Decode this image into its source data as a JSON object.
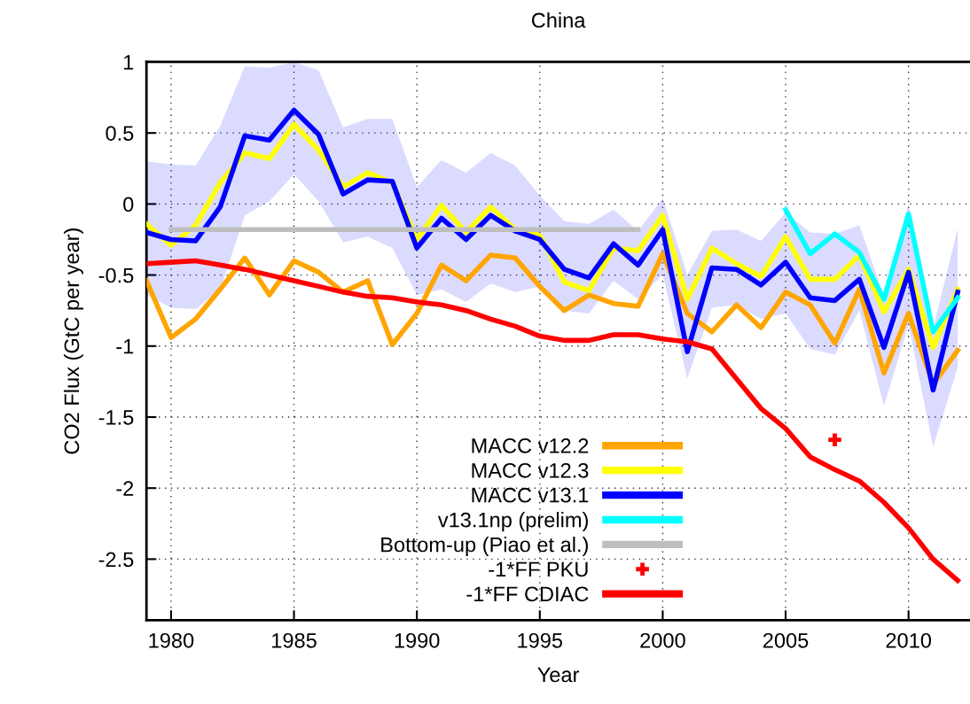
{
  "chart_data": {
    "type": "line",
    "title": "China",
    "xlabel": "Year",
    "ylabel": "CO2 Flux (GtC per year)",
    "xlim": [
      1979,
      2012.5
    ],
    "xticks": [
      1980,
      1985,
      1990,
      1995,
      2000,
      2005,
      2010
    ],
    "ylim": [
      -2.93,
      1
    ],
    "yticks": [
      1,
      0.5,
      0,
      -0.5,
      -1,
      -1.5,
      -2,
      -2.5
    ],
    "grid": true,
    "legend": "bottom",
    "line_style": "solid",
    "series": [
      {
        "name": "MACC v12.2",
        "color": "#ffa500",
        "x": [
          1979,
          1980,
          1981,
          1982,
          1983,
          1984,
          1985,
          1986,
          1987,
          1988,
          1989,
          1990,
          1991,
          1992,
          1993,
          1994,
          1995,
          1996,
          1997,
          1998,
          1999,
          2000,
          2001,
          2002,
          2003,
          2004,
          2005,
          2006,
          2007,
          2008,
          2009,
          2010,
          2011,
          2012
        ],
        "values": [
          -0.54,
          -0.94,
          -0.81,
          -0.6,
          -0.38,
          -0.64,
          -0.4,
          -0.48,
          -0.62,
          -0.54,
          -0.99,
          -0.77,
          -0.43,
          -0.54,
          -0.36,
          -0.38,
          -0.58,
          -0.75,
          -0.64,
          -0.7,
          -0.72,
          -0.35,
          -0.77,
          -0.9,
          -0.71,
          -0.87,
          -0.62,
          -0.71,
          -0.98,
          -0.6,
          -1.19,
          -0.77,
          -1.27,
          -1.03
        ]
      },
      {
        "name": "MACC v12.3",
        "color": "#ffff00",
        "x": [
          1979,
          1980,
          1981,
          1982,
          1983,
          1984,
          1985,
          1986,
          1987,
          1988,
          1989,
          1990,
          1991,
          1992,
          1993,
          1994,
          1995,
          1996,
          1997,
          1998,
          1999,
          2000,
          2001,
          2002,
          2003,
          2004,
          2005,
          2006,
          2007,
          2008,
          2009,
          2010,
          2011,
          2012
        ],
        "values": [
          -0.14,
          -0.29,
          -0.15,
          0.15,
          0.36,
          0.32,
          0.56,
          0.38,
          0.12,
          0.22,
          0.15,
          -0.25,
          -0.01,
          -0.2,
          -0.02,
          -0.18,
          -0.22,
          -0.55,
          -0.61,
          -0.31,
          -0.33,
          -0.08,
          -0.67,
          -0.31,
          -0.42,
          -0.51,
          -0.23,
          -0.53,
          -0.53,
          -0.36,
          -0.76,
          -0.46,
          -1.01,
          -0.6
        ]
      },
      {
        "name": "MACC v13.1",
        "color": "#0000ff",
        "x": [
          1979,
          1980,
          1981,
          1982,
          1983,
          1984,
          1985,
          1986,
          1987,
          1988,
          1989,
          1990,
          1991,
          1992,
          1993,
          1994,
          1995,
          1996,
          1997,
          1998,
          1999,
          2000,
          2001,
          2002,
          2003,
          2004,
          2005,
          2006,
          2007,
          2008,
          2009,
          2010,
          2011,
          2012
        ],
        "values": [
          -0.2,
          -0.25,
          -0.26,
          -0.02,
          0.48,
          0.45,
          0.66,
          0.49,
          0.07,
          0.17,
          0.16,
          -0.31,
          -0.1,
          -0.25,
          -0.08,
          -0.19,
          -0.25,
          -0.46,
          -0.52,
          -0.28,
          -0.43,
          -0.18,
          -1.04,
          -0.45,
          -0.46,
          -0.57,
          -0.41,
          -0.66,
          -0.68,
          -0.53,
          -1.01,
          -0.48,
          -1.31,
          -0.62
        ],
        "lower": [
          -0.64,
          -0.73,
          -0.74,
          -0.6,
          -0.08,
          0.02,
          0.21,
          0.02,
          -0.27,
          -0.23,
          -0.31,
          -0.64,
          -0.6,
          -0.69,
          -0.56,
          -0.62,
          -0.58,
          -0.75,
          -0.77,
          -0.54,
          -0.67,
          -0.5,
          -1.23,
          -0.73,
          -0.71,
          -0.81,
          -0.77,
          -1.02,
          -1.06,
          -0.75,
          -1.42,
          -0.85,
          -1.71,
          -1.15
        ],
        "upper": [
          0.3,
          0.28,
          0.27,
          0.55,
          0.97,
          0.96,
          1.0,
          0.94,
          0.54,
          0.6,
          0.6,
          0.12,
          0.31,
          0.22,
          0.36,
          0.27,
          0.06,
          -0.12,
          -0.14,
          -0.04,
          -0.19,
          0.04,
          -0.5,
          -0.19,
          -0.18,
          -0.26,
          -0.06,
          -0.2,
          -0.21,
          -0.15,
          -0.65,
          0.0,
          -0.88,
          -0.17
        ]
      },
      {
        "name": "v13.1np (prelim)",
        "color": "#00ffff",
        "x": [
          2005,
          2006,
          2007,
          2008,
          2009,
          2010,
          2011,
          2012
        ],
        "values": [
          -0.04,
          -0.35,
          -0.21,
          -0.34,
          -0.67,
          -0.07,
          -0.9,
          -0.66
        ]
      },
      {
        "name": "Bottom-up (Piao et al.)",
        "color": "#bebebe",
        "x": [
          1980,
          1999
        ],
        "values": [
          -0.18,
          -0.18
        ]
      },
      {
        "name": "-1*FF PKU",
        "color": "#ff0000",
        "type": "scatter",
        "marker": "cross",
        "x": [
          2007
        ],
        "values": [
          -1.66
        ]
      },
      {
        "name": "-1*FF CDIAC",
        "color": "#ff0000",
        "x": [
          1979,
          1980,
          1981,
          1982,
          1983,
          1984,
          1985,
          1986,
          1987,
          1988,
          1989,
          1990,
          1991,
          1992,
          1993,
          1994,
          1995,
          1996,
          1997,
          1998,
          1999,
          2000,
          2001,
          2002,
          2003,
          2004,
          2005,
          2006,
          2007,
          2008,
          2009,
          2010,
          2011,
          2012
        ],
        "values": [
          -0.42,
          -0.41,
          -0.4,
          -0.43,
          -0.46,
          -0.5,
          -0.54,
          -0.58,
          -0.62,
          -0.65,
          -0.66,
          -0.69,
          -0.71,
          -0.75,
          -0.81,
          -0.86,
          -0.93,
          -0.96,
          -0.96,
          -0.92,
          -0.92,
          -0.95,
          -0.97,
          -1.02,
          -1.23,
          -1.44,
          -1.58,
          -1.78,
          -1.87,
          -1.95,
          -2.1,
          -2.28,
          -2.5,
          -2.65
        ]
      }
    ]
  }
}
